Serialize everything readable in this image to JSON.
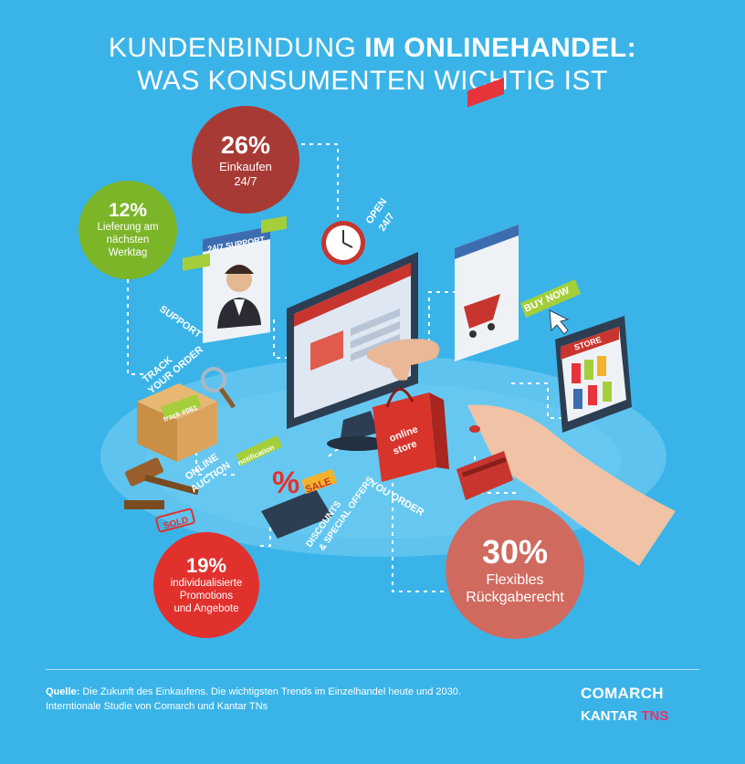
{
  "title": {
    "line1_regular": "KUNDENBINDUNG ",
    "line1_bold": "IM ONLINEHANDEL:",
    "line2": "WAS KONSUMENTEN WICHTIG IST"
  },
  "stats": {
    "shop_247": {
      "value": "26%",
      "label_l1": "Einkaufen",
      "label_l2": "24/7",
      "color": "#a83a35"
    },
    "next_day": {
      "value": "12%",
      "label_l1": "Lieferung am",
      "label_l2": "nächsten",
      "label_l3": "Werktag",
      "color": "#7cb527"
    },
    "promos": {
      "value": "19%",
      "label_l1": "individualisierte",
      "label_l2": "Promotions",
      "label_l3": "und Angebote",
      "color": "#e0312d"
    },
    "returns": {
      "value": "30%",
      "label_l1": "Flexibles",
      "label_l2": "Rückgaberecht",
      "color": "#d06a5f"
    }
  },
  "illustration": {
    "support_window_title": "24/7 SUPPORT",
    "support": "SUPPORT",
    "open_l1": "OPEN",
    "open_l2": "24/7",
    "track_l1": "TRACK",
    "track_l2": "YOUR ORDER",
    "track_tag": "track #061",
    "online_l1": "ONLINE",
    "online_l2": "AUCTION",
    "notification": "notification",
    "sold": "SOLD",
    "sale": "SALE",
    "percent": "%",
    "discounts_l1": "DISCOUNTS",
    "discounts_l2": "& SPECIAL OFFERS",
    "you_order": "YOU ORDER",
    "bag_l1": "online",
    "bag_l2": "store",
    "buy_now": "BUY NOW",
    "store": "STORE"
  },
  "footer": {
    "source_label": "Quelle:",
    "source_text": " Die Zukunft des Einkaufens. Die wichtigsten Trends im Einzelhandel heute und 2030. Interntionale Studie von Comarch und Kantar TNs",
    "logo_comarch": "COMARCH",
    "logo_kantar": "KANTAR ",
    "logo_tns": "TNS"
  },
  "colors": {
    "background": "#3ab4e8",
    "platform": "#5ec3ef"
  }
}
